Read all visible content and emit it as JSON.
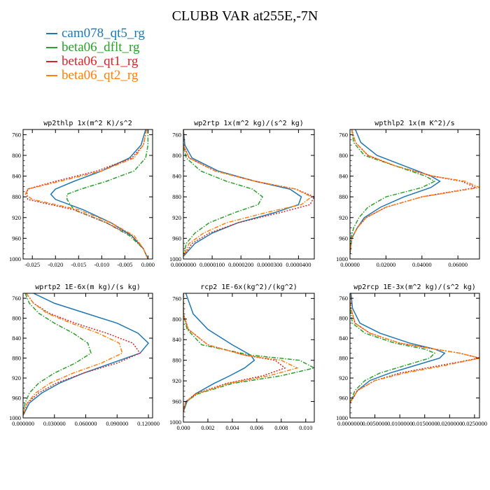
{
  "title": "CLUBB VAR at255E,-7N",
  "legend": [
    {
      "label": "cam078_qt5_rg",
      "color": "#1f77b4",
      "dash": "solid"
    },
    {
      "label": "beta06_dflt_rg",
      "color": "#2ca02c",
      "dash": "dashdot"
    },
    {
      "label": "beta06_qt1_rg",
      "color": "#d62728",
      "dash": "dot"
    },
    {
      "label": "beta06_qt2_rg",
      "color": "#ff7f0e",
      "dash": "dashdot"
    }
  ],
  "chart_data": [
    {
      "type": "line",
      "title": "wp2thlp  1x(m^2 K)/s^2",
      "xlim": [
        -0.027,
        0.001
      ],
      "ylim": [
        1000,
        750
      ],
      "xticks": [
        -0.025,
        -0.02,
        -0.015,
        -0.01,
        -0.005,
        0.0
      ],
      "xtick_labels": [
        "-0.025",
        "-0.020",
        "-0.015",
        "-0.010",
        "-0.005",
        "0.000"
      ],
      "yticks": [
        760,
        800,
        840,
        880,
        920,
        960,
        1000
      ],
      "series": [
        {
          "name": "cam078_qt5_rg",
          "x": [
            -0.0005,
            -0.0015,
            -0.004,
            -0.01,
            -0.016,
            -0.02,
            -0.021,
            -0.02,
            -0.014,
            -0.008,
            -0.0035,
            -0.001,
            0.0
          ],
          "y": [
            750,
            780,
            805,
            830,
            850,
            865,
            875,
            885,
            905,
            930,
            955,
            980,
            1000
          ]
        },
        {
          "name": "beta06_dflt_rg",
          "x": [
            0.0,
            0.0,
            -0.0005,
            -0.003,
            -0.009,
            -0.0145,
            -0.0175,
            -0.0175,
            -0.016,
            -0.009,
            -0.004,
            -0.001,
            0.0
          ],
          "y": [
            750,
            780,
            805,
            830,
            850,
            865,
            875,
            885,
            905,
            930,
            955,
            980,
            1000
          ]
        },
        {
          "name": "beta06_qt1_rg",
          "x": [
            -0.0003,
            -0.001,
            -0.0035,
            -0.011,
            -0.02,
            -0.026,
            -0.0262,
            -0.026,
            -0.016,
            -0.009,
            -0.0035,
            -0.001,
            0.0
          ],
          "y": [
            750,
            780,
            805,
            830,
            850,
            865,
            875,
            885,
            905,
            930,
            955,
            980,
            1000
          ]
        },
        {
          "name": "beta06_qt2_rg",
          "x": [
            -0.0003,
            -0.001,
            -0.003,
            -0.01,
            -0.019,
            -0.026,
            -0.0265,
            -0.025,
            -0.015,
            -0.008,
            -0.003,
            -0.001,
            0.0
          ],
          "y": [
            750,
            780,
            805,
            830,
            850,
            865,
            875,
            885,
            905,
            930,
            955,
            980,
            1000
          ]
        }
      ]
    },
    {
      "type": "line",
      "title": "wp2rtp  1x(m^2 kg)/(s^2 kg)",
      "xlim": [
        0,
        4.55e-05
      ],
      "ylim": [
        1000,
        750
      ],
      "xticks": [
        0,
        1e-05,
        2e-05,
        3e-05,
        4e-05
      ],
      "xtick_labels": [
        "0.0000000",
        "0.0000100",
        "0.0000200",
        "0.0000300",
        "0.0000400"
      ],
      "yticks": [
        760,
        800,
        840,
        880,
        920,
        960,
        1000
      ],
      "series": [
        {
          "name": "cam078_qt5_rg",
          "x": [
            0,
            5e-07,
            3e-06,
            1.2e-05,
            2.5e-05,
            3.7e-05,
            4.1e-05,
            4e-05,
            3.2e-05,
            1.9e-05,
            1e-05,
            4e-06,
            0
          ],
          "y": [
            750,
            780,
            805,
            830,
            850,
            865,
            880,
            895,
            910,
            930,
            950,
            970,
            995
          ]
        },
        {
          "name": "beta06_dflt_rg",
          "x": [
            0,
            0,
            1e-06,
            6e-06,
            1.5e-05,
            2.4e-05,
            2.75e-05,
            2.6e-05,
            1.8e-05,
            9e-06,
            4e-06,
            1e-06,
            0
          ],
          "y": [
            750,
            780,
            805,
            830,
            850,
            865,
            880,
            895,
            910,
            930,
            950,
            970,
            995
          ]
        },
        {
          "name": "beta06_qt1_rg",
          "x": [
            0,
            0,
            2e-06,
            1.1e-05,
            2.5e-05,
            3.9e-05,
            4.55e-05,
            4.4e-05,
            3.4e-05,
            1.9e-05,
            9e-06,
            3e-06,
            0
          ],
          "y": [
            750,
            780,
            805,
            830,
            850,
            865,
            880,
            895,
            910,
            930,
            950,
            970,
            995
          ]
        },
        {
          "name": "beta06_qt2_rg",
          "x": [
            0,
            0,
            2e-06,
            1.1e-05,
            2.5e-05,
            3.9e-05,
            4.45e-05,
            4.1e-05,
            2.9e-05,
            1.5e-05,
            7e-06,
            2e-06,
            0
          ],
          "y": [
            750,
            780,
            805,
            830,
            850,
            865,
            880,
            895,
            910,
            930,
            950,
            970,
            995
          ]
        }
      ]
    },
    {
      "type": "line",
      "title": "wpthlp2  1x(m K^2)/s",
      "xlim": [
        0,
        0.072
      ],
      "ylim": [
        1000,
        750
      ],
      "xticks": [
        0,
        0.02,
        0.04,
        0.06
      ],
      "xtick_labels": [
        "0.00000",
        "0.02000",
        "0.04000",
        "0.06000"
      ],
      "yticks": [
        760,
        800,
        840,
        880,
        920,
        960,
        1000
      ],
      "series": [
        {
          "name": "cam078_qt5_rg",
          "x": [
            0.003,
            0.006,
            0.015,
            0.03,
            0.045,
            0.05,
            0.045,
            0.03,
            0.017,
            0.008,
            0.004,
            0.001,
            0.0
          ],
          "y": [
            750,
            775,
            800,
            820,
            840,
            850,
            862,
            880,
            900,
            920,
            940,
            960,
            990
          ]
        },
        {
          "name": "beta06_dflt_rg",
          "x": [
            0.001,
            0.002,
            0.008,
            0.025,
            0.042,
            0.047,
            0.04,
            0.02,
            0.01,
            0.005,
            0.002,
            0.0005,
            0.0
          ],
          "y": [
            750,
            775,
            800,
            820,
            840,
            850,
            862,
            880,
            900,
            920,
            940,
            960,
            990
          ]
        },
        {
          "name": "beta06_qt1_rg",
          "x": [
            0.001,
            0.003,
            0.01,
            0.025,
            0.046,
            0.062,
            0.07,
            0.04,
            0.02,
            0.009,
            0.004,
            0.001,
            0.0
          ],
          "y": [
            750,
            775,
            800,
            820,
            840,
            850,
            862,
            880,
            900,
            920,
            940,
            960,
            990
          ]
        },
        {
          "name": "beta06_qt2_rg",
          "x": [
            0.001,
            0.003,
            0.01,
            0.025,
            0.046,
            0.064,
            0.072,
            0.04,
            0.02,
            0.009,
            0.004,
            0.001,
            0.0
          ],
          "y": [
            750,
            775,
            800,
            820,
            840,
            850,
            862,
            880,
            900,
            920,
            940,
            960,
            990
          ]
        }
      ]
    },
    {
      "type": "line",
      "title": "wprtp2  1E-6x(m kg)/(s kg)",
      "xlim": [
        0,
        0.124
      ],
      "ylim": [
        1000,
        750
      ],
      "xticks": [
        0,
        0.03,
        0.06,
        0.09,
        0.12
      ],
      "xtick_labels": [
        "0.000000",
        "0.030000",
        "0.060000",
        "0.090000",
        "0.120000"
      ],
      "yticks": [
        760,
        800,
        840,
        880,
        920,
        960,
        1000
      ],
      "series": [
        {
          "name": "cam078_qt5_rg",
          "x": [
            0.01,
            0.03,
            0.06,
            0.09,
            0.11,
            0.12,
            0.112,
            0.085,
            0.058,
            0.035,
            0.018,
            0.006,
            0.0
          ],
          "y": [
            750,
            770,
            790,
            810,
            830,
            850,
            870,
            890,
            910,
            930,
            950,
            970,
            995
          ]
        },
        {
          "name": "beta06_dflt_rg",
          "x": [
            0.002,
            0.006,
            0.015,
            0.03,
            0.048,
            0.062,
            0.065,
            0.05,
            0.03,
            0.015,
            0.006,
            0.002,
            0.0
          ],
          "y": [
            750,
            770,
            790,
            810,
            830,
            850,
            870,
            890,
            910,
            930,
            950,
            970,
            995
          ]
        },
        {
          "name": "beta06_qt1_rg",
          "x": [
            0.003,
            0.01,
            0.025,
            0.05,
            0.08,
            0.105,
            0.112,
            0.09,
            0.058,
            0.032,
            0.015,
            0.004,
            0.0
          ],
          "y": [
            750,
            770,
            790,
            810,
            830,
            850,
            870,
            890,
            910,
            930,
            950,
            970,
            995
          ]
        },
        {
          "name": "beta06_qt2_rg",
          "x": [
            0.003,
            0.01,
            0.023,
            0.046,
            0.072,
            0.092,
            0.095,
            0.075,
            0.048,
            0.026,
            0.012,
            0.004,
            0.0
          ],
          "y": [
            750,
            770,
            790,
            810,
            830,
            850,
            870,
            890,
            910,
            930,
            950,
            970,
            995
          ]
        }
      ]
    },
    {
      "type": "line",
      "title": "rcp2  1E-6x(kg^2)/(kg^2)",
      "xlim": [
        0,
        0.0107
      ],
      "ylim": [
        1000,
        750
      ],
      "xticks": [
        0,
        0.002,
        0.004,
        0.006,
        0.008,
        0.01
      ],
      "xtick_labels": [
        "0.000",
        "0.002",
        "0.004",
        "0.006",
        "0.008",
        "0.010"
      ],
      "yticks": [
        760,
        800,
        840,
        880,
        920,
        960,
        1000
      ],
      "series": [
        {
          "name": "cam078_qt5_rg",
          "x": [
            0.0002,
            0.0008,
            0.002,
            0.004,
            0.0055,
            0.0058,
            0.005,
            0.0038,
            0.0025,
            0.001,
            0.0003,
            0.0
          ],
          "y": [
            750,
            790,
            820,
            850,
            870,
            880,
            895,
            910,
            925,
            945,
            960,
            980
          ]
        },
        {
          "name": "beta06_dflt_rg",
          "x": [
            0.0,
            0.0,
            0.0003,
            0.0015,
            0.0055,
            0.0095,
            0.0107,
            0.008,
            0.004,
            0.0012,
            0.0002,
            0.0
          ],
          "y": [
            750,
            790,
            820,
            850,
            870,
            880,
            895,
            910,
            925,
            945,
            960,
            980
          ]
        },
        {
          "name": "beta06_qt1_rg",
          "x": [
            0.0,
            0.0,
            0.0004,
            0.002,
            0.005,
            0.0075,
            0.0083,
            0.0065,
            0.0035,
            0.001,
            0.0002,
            0.0
          ],
          "y": [
            750,
            790,
            820,
            850,
            870,
            880,
            895,
            910,
            925,
            945,
            960,
            980
          ]
        },
        {
          "name": "beta06_qt2_rg",
          "x": [
            0.0,
            0.0,
            0.0004,
            0.002,
            0.005,
            0.008,
            0.0093,
            0.007,
            0.0037,
            0.0011,
            0.0002,
            0.0
          ],
          "y": [
            750,
            790,
            820,
            850,
            870,
            880,
            895,
            910,
            925,
            945,
            960,
            980
          ]
        }
      ]
    },
    {
      "type": "line",
      "title": "wp2rcp  1E-3x(m^2 kg)/(s^2 kg)",
      "xlim": [
        0,
        0.026
      ],
      "ylim": [
        1000,
        750
      ],
      "xticks": [
        0,
        0.005,
        0.01,
        0.015,
        0.02,
        0.025
      ],
      "xtick_labels": [
        "0.0000000",
        "0.0050000",
        "0.0100000",
        "0.0150000",
        "0.0200000",
        "0.0250000"
      ],
      "yticks": [
        760,
        800,
        840,
        880,
        920,
        960,
        1000
      ],
      "series": [
        {
          "name": "cam078_qt5_rg",
          "x": [
            0.0002,
            0.0005,
            0.002,
            0.006,
            0.012,
            0.017,
            0.019,
            0.018,
            0.013,
            0.008,
            0.004,
            0.0015,
            0.0
          ],
          "y": [
            750,
            780,
            810,
            830,
            850,
            862,
            870,
            880,
            895,
            910,
            925,
            945,
            970
          ]
        },
        {
          "name": "beta06_dflt_rg",
          "x": [
            0.0,
            0.0,
            0.0005,
            0.003,
            0.009,
            0.015,
            0.017,
            0.016,
            0.011,
            0.006,
            0.003,
            0.001,
            0.0
          ],
          "y": [
            750,
            780,
            810,
            830,
            850,
            862,
            870,
            880,
            895,
            910,
            925,
            945,
            970
          ]
        },
        {
          "name": "beta06_qt1_rg",
          "x": [
            0.0,
            0.0002,
            0.001,
            0.004,
            0.01,
            0.017,
            0.022,
            0.026,
            0.018,
            0.01,
            0.005,
            0.0015,
            0.0
          ],
          "y": [
            750,
            780,
            810,
            830,
            850,
            862,
            870,
            880,
            895,
            910,
            925,
            945,
            970
          ]
        },
        {
          "name": "beta06_qt2_rg",
          "x": [
            0.0,
            0.0002,
            0.001,
            0.004,
            0.01,
            0.017,
            0.022,
            0.026,
            0.019,
            0.011,
            0.005,
            0.0015,
            0.0
          ],
          "y": [
            750,
            780,
            810,
            830,
            850,
            862,
            870,
            880,
            895,
            910,
            925,
            945,
            970
          ]
        }
      ]
    }
  ]
}
